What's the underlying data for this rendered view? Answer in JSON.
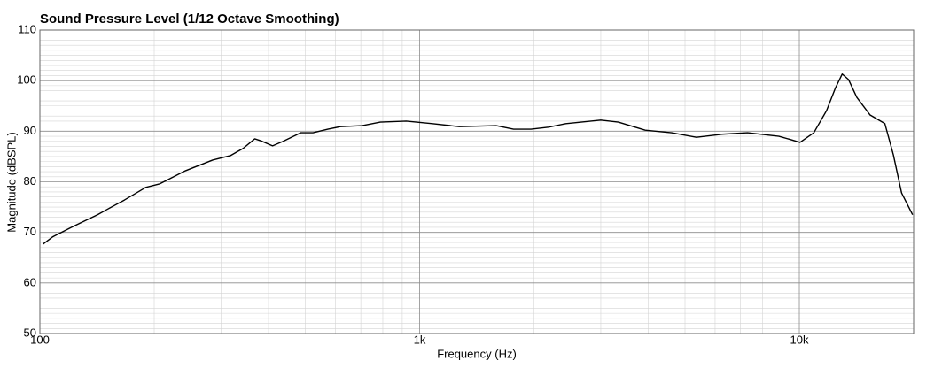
{
  "chart_data": {
    "type": "line",
    "title": "Sound Pressure Level (1/12 Octave Smoothing)",
    "x_label": "Frequency (Hz)",
    "y_label": "Magnitude (dBSPL)",
    "x_scale": "log",
    "grid": true,
    "xlim": [
      100,
      20000
    ],
    "ylim": [
      50,
      110
    ],
    "xticks": [
      100,
      {
        "value": 1000,
        "label": "1k"
      },
      {
        "value": 10000,
        "label": "10k"
      }
    ],
    "yticks": [
      50,
      60,
      70,
      80,
      90,
      100,
      110
    ],
    "xminorticks": [
      200,
      300,
      400,
      500,
      600,
      700,
      800,
      900,
      2000,
      3000,
      4000,
      5000,
      6000,
      7000,
      8000,
      9000
    ],
    "yminorticks": [
      51,
      52,
      53,
      54,
      55,
      56,
      57,
      58,
      59,
      61,
      62,
      63,
      64,
      65,
      66,
      67,
      68,
      69,
      71,
      72,
      73,
      74,
      75,
      76,
      77,
      78,
      79,
      81,
      82,
      83,
      84,
      85,
      86,
      87,
      88,
      89,
      91,
      92,
      93,
      94,
      95,
      96,
      97,
      98,
      99,
      101,
      102,
      103,
      104,
      105,
      106,
      107,
      108,
      109
    ],
    "series": [
      {
        "color": "#000000",
        "x": [
          102,
          108,
          121,
          142,
          150,
          167,
          190,
          207,
          242,
          285,
          318,
          343,
          368,
          382,
          410,
          437,
          487,
          524,
          573,
          619,
          706,
          788,
          922,
          1081,
          1272,
          1591,
          1768,
          1965,
          2184,
          2428,
          3000,
          3337,
          3928,
          4607,
          5358,
          6249,
          7308,
          8833,
          9535,
          10040,
          10920,
          11800,
          12440,
          12970,
          13480,
          14170,
          15360,
          16800,
          17690,
          18590,
          19870
        ],
        "values": [
          67.7,
          69.1,
          71.0,
          73.5,
          74.5,
          76.4,
          78.9,
          79.6,
          82.2,
          84.3,
          85.2,
          86.6,
          88.5,
          88.1,
          87.1,
          88.0,
          89.7,
          89.7,
          90.4,
          90.9,
          91.1,
          91.8,
          92.0,
          91.5,
          90.9,
          91.1,
          90.4,
          90.4,
          90.8,
          91.5,
          92.2,
          91.8,
          90.2,
          89.7,
          88.8,
          89.4,
          89.7,
          89.0,
          88.3,
          87.8,
          89.7,
          94.1,
          98.5,
          101.3,
          100.2,
          96.7,
          93.2,
          91.5,
          85.3,
          77.8,
          73.5
        ]
      }
    ]
  }
}
